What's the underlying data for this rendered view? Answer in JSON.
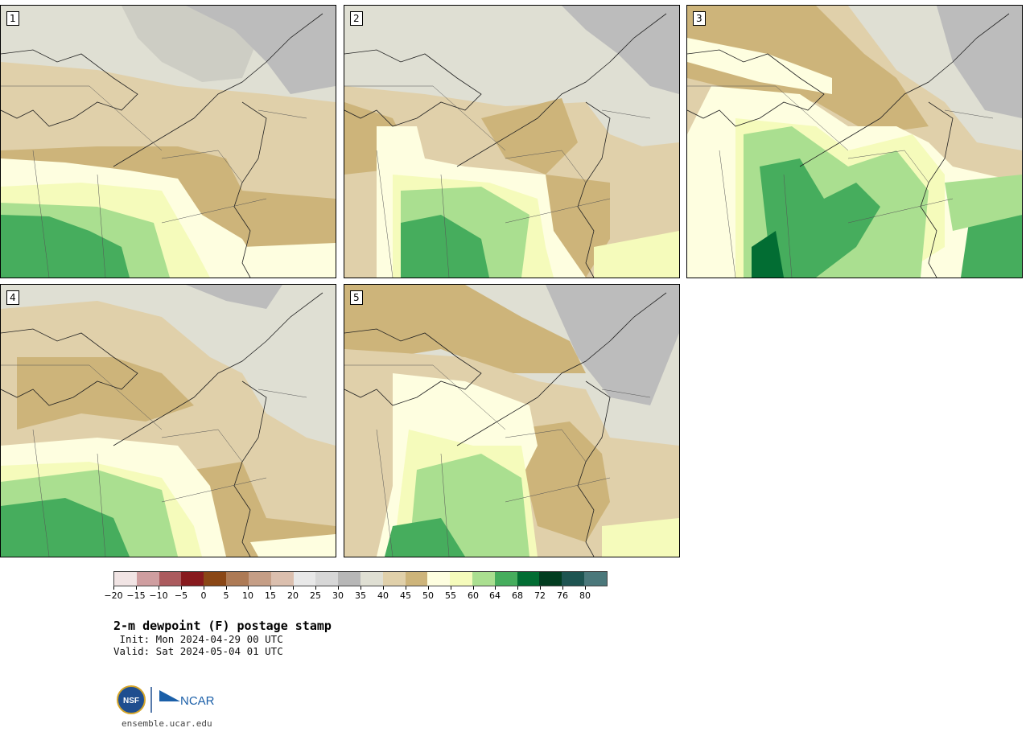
{
  "panels": [
    {
      "label": "1"
    },
    {
      "label": "2"
    },
    {
      "label": "3"
    },
    {
      "label": "4"
    },
    {
      "label": "5"
    }
  ],
  "colorbar": {
    "colors": [
      "#f1e4e4",
      "#cf9ea0",
      "#ab5b5e",
      "#881a1e",
      "#8a4716",
      "#ad7a55",
      "#c59e86",
      "#dbbfae",
      "#e8e8e8",
      "#d7d7d7",
      "#b7b7b7",
      "#dfdfd3",
      "#e0d0aa",
      "#cdb47a",
      "#fefee0",
      "#f5fbbb",
      "#aadf90",
      "#46ad5d",
      "#026d33",
      "#023d20",
      "#1e5451",
      "#4b787b"
    ],
    "tick_labels": [
      "−20",
      "−15",
      "−10",
      "−5",
      "0",
      "5",
      "10",
      "15",
      "20",
      "25",
      "30",
      "35",
      "40",
      "45",
      "50",
      "55",
      "60",
      "64",
      "68",
      "72",
      "76",
      "80"
    ]
  },
  "title": "2-m dewpoint (F) postage stamp",
  "init_text": " Init: Mon 2024-04-29 00 UTC",
  "valid_text": "Valid: Sat 2024-05-04 01 UTC",
  "logos": {
    "nsf": "NSF",
    "ncar": "NCAR"
  },
  "site": "ensemble.ucar.edu",
  "colors": {
    "grey_high": "#bcbcbc",
    "grey_light": "#dfdfd3",
    "tan_light": "#e0d0aa",
    "tan_dark": "#cdb47a",
    "cream": "#fefee0",
    "yellow": "#f5fbbb",
    "green_light": "#aadf90",
    "green_mid": "#46ad5d",
    "green_dark": "#026d33"
  }
}
